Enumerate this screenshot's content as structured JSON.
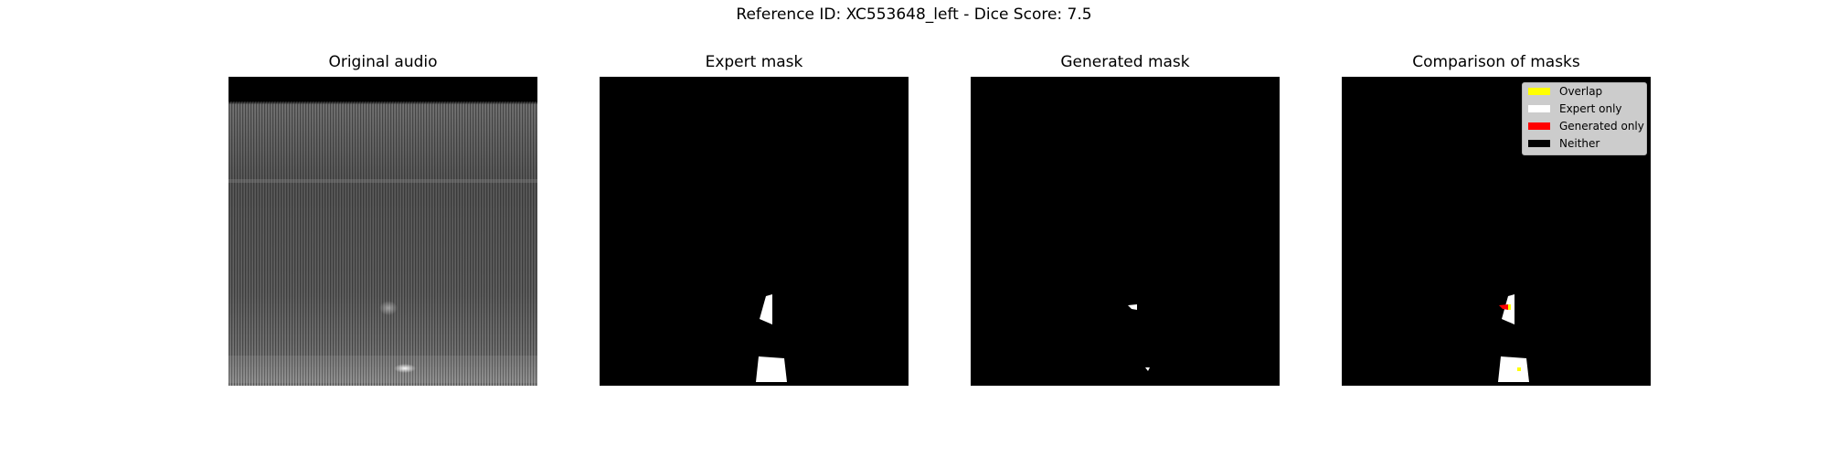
{
  "suptitle": "Reference ID: XC553648_left - Dice Score: 7.5",
  "panels": [
    {
      "title": "Original audio"
    },
    {
      "title": "Expert mask"
    },
    {
      "title": "Generated mask"
    },
    {
      "title": "Comparison of masks"
    }
  ],
  "legend": {
    "items": [
      {
        "label": "Overlap",
        "color": "#ffff00"
      },
      {
        "label": "Expert only",
        "color": "#ffffff"
      },
      {
        "label": "Generated only",
        "color": "#ff0000"
      },
      {
        "label": "Neither",
        "color": "#000000"
      }
    ]
  },
  "colors": {
    "figure_background": "#ffffff",
    "mask_background": "#000000",
    "spectrogram_base": "#5a5a5a",
    "legend_background": "#cccccc"
  }
}
